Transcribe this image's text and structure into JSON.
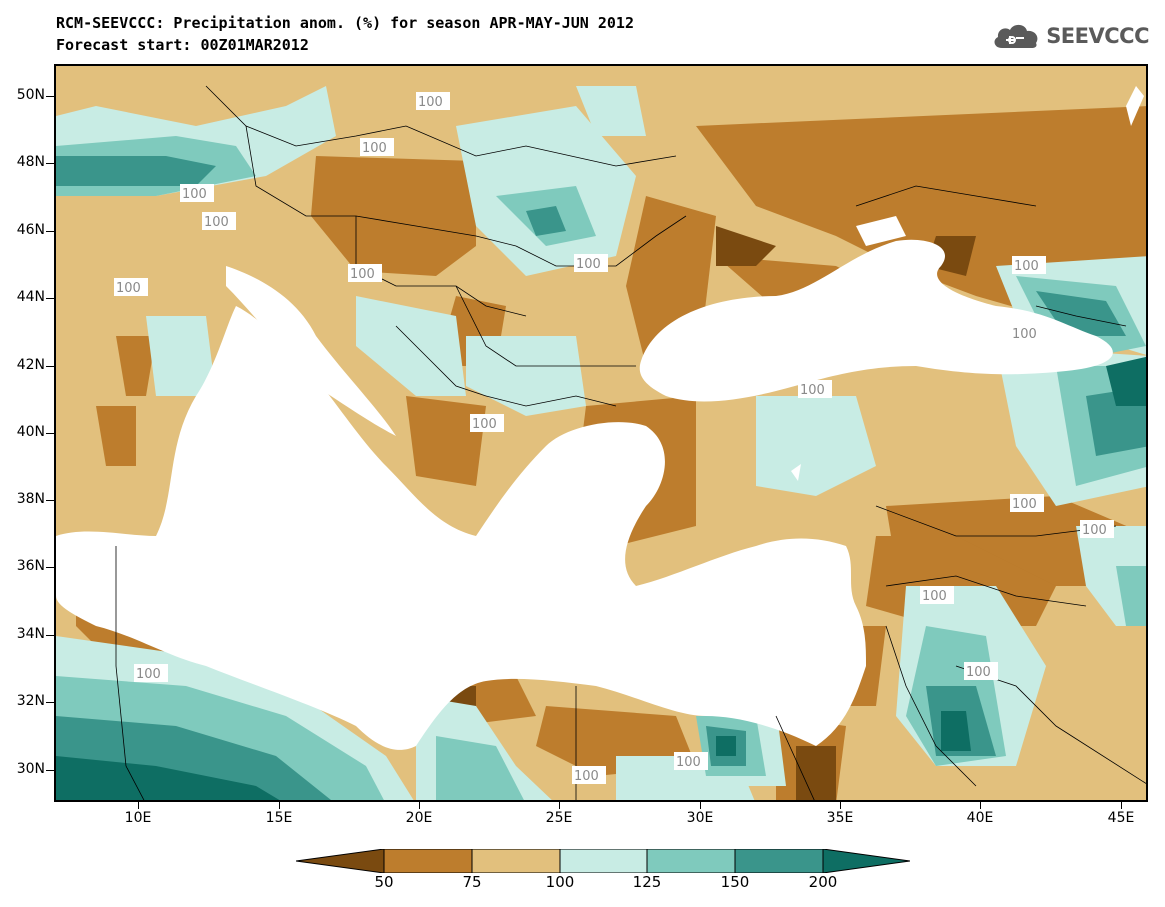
{
  "title_line1": "RCM-SEEVCCC: Precipitation anom. (%) for season APR-MAY-JUN 2012",
  "title_line2": "Forecast start: 00Z01MAR2012",
  "logo": {
    "text": "SEEVCCC",
    "icon": "cloud-icon"
  },
  "map": {
    "lon_range": [
      7,
      46
    ],
    "lat_range": [
      29,
      51
    ],
    "lat_ticks": [
      "50N",
      "48N",
      "46N",
      "44N",
      "42N",
      "40N",
      "38N",
      "36N",
      "34N",
      "32N",
      "30N"
    ],
    "lon_ticks": [
      "10E",
      "15E",
      "20E",
      "25E",
      "30E",
      "35E",
      "40E",
      "45E"
    ],
    "contour_label": "100"
  },
  "colorbar": {
    "levels": [
      "50",
      "75",
      "100",
      "125",
      "150",
      "200"
    ],
    "colors": [
      "#7a4a10",
      "#bd7d2d",
      "#e2c07d",
      "#c8ece4",
      "#7fcabd",
      "#3a958b",
      "#0e6e63"
    ]
  }
}
